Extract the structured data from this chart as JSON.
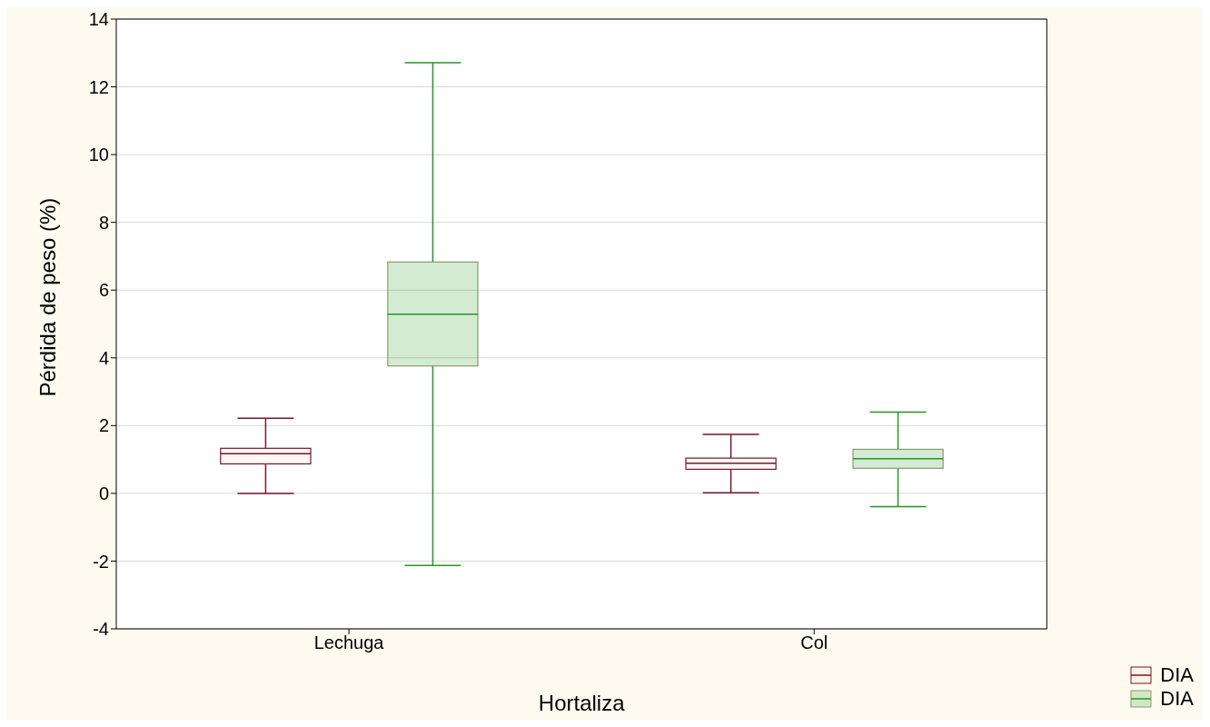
{
  "chart_data": {
    "type": "box",
    "xlabel": "Hortaliza",
    "ylabel": "Pérdida de peso (%)",
    "categories": [
      "Lechuga",
      "Col"
    ],
    "series": [
      {
        "name": "DIA",
        "color": "#7a1526",
        "boxes": [
          {
            "low": 0,
            "q1": 0.87,
            "median": 1.17,
            "q3": 1.33,
            "high": 2.22
          },
          {
            "low": 0.02,
            "q1": 0.71,
            "median": 0.89,
            "q3": 1.04,
            "high": 1.74
          }
        ]
      },
      {
        "name": "DIA",
        "color": "#1f9a1f",
        "boxes": [
          {
            "low": -2.13,
            "q1": 3.76,
            "median": 5.29,
            "q3": 6.83,
            "high": 12.71
          },
          {
            "low": -0.39,
            "q1": 0.74,
            "median": 1.02,
            "q3": 1.3,
            "high": 2.4
          }
        ]
      }
    ],
    "ylim": [
      -4,
      14
    ],
    "yticks": [
      -4,
      -2,
      0,
      2,
      4,
      6,
      8,
      10,
      12,
      14
    ],
    "grid": "y",
    "legend": "bottom right"
  }
}
